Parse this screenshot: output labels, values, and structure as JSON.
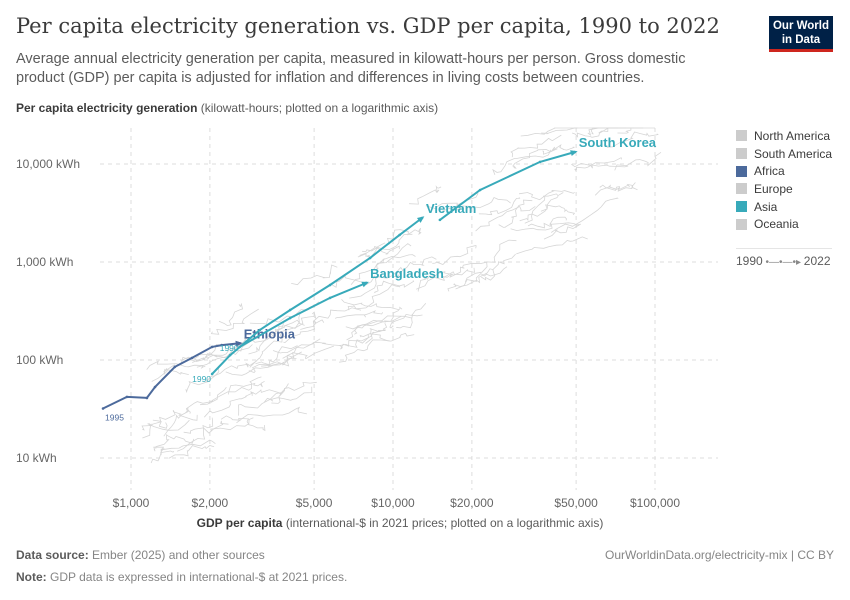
{
  "title": "Per capita electricity generation vs. GDP per capita, 1990 to 2022",
  "subtitle": "Average annual electricity generation per capita, measured in kilowatt-hours per person. Gross domestic product (GDP) per capita is adjusted for inflation and differences in living costs between countries.",
  "logo": "Our World in Data",
  "footer": {
    "source_label": "Data source:",
    "source": "Ember (2025) and other sources",
    "note_label": "Note:",
    "note": "GDP data is expressed in international-$ at 2021 prices.",
    "url": "OurWorldinData.org/electricity-mix | CC BY"
  },
  "timeline": {
    "start": "1990",
    "end": "2022"
  },
  "legend": [
    {
      "name": "North America",
      "color": "#cccccc"
    },
    {
      "name": "South America",
      "color": "#cccccc"
    },
    {
      "name": "Africa",
      "color": "#4c6a9c"
    },
    {
      "name": "Europe",
      "color": "#cccccc"
    },
    {
      "name": "Asia",
      "color": "#38aaba"
    },
    {
      "name": "Oceania",
      "color": "#cccccc"
    }
  ],
  "chart_data": {
    "type": "scatter",
    "connected": true,
    "title": "Per capita electricity generation vs. GDP per capita, 1990 to 2022",
    "ylabel_bold": "Per capita electricity generation",
    "ylabel_rest": " (kilowatt-hours; plotted on a logarithmic axis)",
    "xlabel_bold": "GDP per capita",
    "xlabel_rest": " (international-$ in 2021 prices; plotted on a logarithmic axis)",
    "x_scale": "log",
    "y_scale": "log",
    "xlim": [
      750,
      150000
    ],
    "ylim": [
      5,
      25000
    ],
    "grid": true,
    "legend_position": "right",
    "x_ticks": [
      {
        "v": 1000,
        "label": "$1,000"
      },
      {
        "v": 2000,
        "label": "$2,000"
      },
      {
        "v": 5000,
        "label": "$5,000"
      },
      {
        "v": 10000,
        "label": "$10,000"
      },
      {
        "v": 20000,
        "label": "$20,000"
      },
      {
        "v": 50000,
        "label": "$50,000"
      },
      {
        "v": 100000,
        "label": "$100,000"
      }
    ],
    "y_ticks": [
      {
        "v": 10,
        "label": "10 kWh"
      },
      {
        "v": 100,
        "label": "100 kWh"
      },
      {
        "v": 1000,
        "label": "1,000 kWh"
      },
      {
        "v": 10000,
        "label": "10,000 kWh"
      }
    ],
    "series": [
      {
        "name": "Ethiopia",
        "region": "Africa",
        "color": "#4c6a9c",
        "start_label": "1995",
        "points": [
          [
            782,
            32
          ],
          [
            965,
            42
          ],
          [
            1150,
            41
          ],
          [
            1235,
            53
          ],
          [
            1470,
            85
          ],
          [
            1710,
            105
          ],
          [
            2040,
            136
          ],
          [
            2220,
            142
          ],
          [
            2600,
            148
          ]
        ]
      },
      {
        "name": "Vietnam",
        "region": "Asia",
        "color": "#38aaba",
        "start_label": "1990",
        "points": [
          [
            2040,
            72
          ],
          [
            2390,
            112
          ],
          [
            3100,
            202
          ],
          [
            4050,
            324
          ],
          [
            5750,
            582
          ],
          [
            8180,
            1100
          ],
          [
            10600,
            1890
          ],
          [
            12900,
            2810
          ]
        ]
      },
      {
        "name": "Bangladesh",
        "region": "Asia",
        "color": "#38aaba",
        "start_label": "1990",
        "points": [
          [
            2600,
            136
          ],
          [
            4050,
            268
          ],
          [
            5750,
            430
          ],
          [
            7900,
            611
          ]
        ]
      },
      {
        "name": "South Korea",
        "region": "Asia",
        "color": "#38aaba",
        "points": [
          [
            15100,
            2690
          ],
          [
            21500,
            5430
          ],
          [
            36400,
            10500
          ],
          [
            49400,
            13250
          ]
        ]
      }
    ]
  }
}
